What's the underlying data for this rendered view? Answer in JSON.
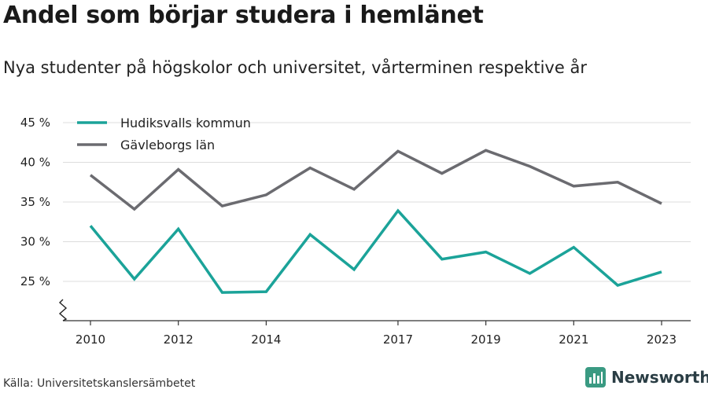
{
  "header": {
    "title": "Andel som börjar studera i hemlänet",
    "subtitle": "Nya studenter på högskolor och universitet, vårterminen respektive år"
  },
  "footer": {
    "source": "Källa: Universitetskanslersämbetet",
    "brand": "Newsworthy"
  },
  "colors": {
    "brand": "#3a9a82"
  },
  "chart_data": {
    "type": "line",
    "x": [
      2010,
      2011,
      2012,
      2013,
      2014,
      2015,
      2016,
      2017,
      2018,
      2019,
      2020,
      2021,
      2022,
      2023
    ],
    "x_ticks": [
      "2010",
      "2012",
      "2014",
      "2017",
      "2019",
      "2021",
      "2023"
    ],
    "y_ticks": [
      "25 %",
      "30 %",
      "35 %",
      "40 %",
      "45 %"
    ],
    "ylim": [
      20,
      45
    ],
    "y_axis_break": true,
    "grid": true,
    "legend_position": "top-left",
    "series": [
      {
        "name": "Hudiksvalls kommun",
        "color": "#1ba399",
        "values": [
          32.0,
          25.3,
          31.6,
          23.6,
          23.7,
          30.9,
          26.5,
          33.9,
          27.8,
          28.7,
          26.0,
          29.3,
          24.5,
          26.2
        ]
      },
      {
        "name": "Gävleborgs län",
        "color": "#6b6b70",
        "values": [
          38.4,
          34.1,
          39.1,
          34.5,
          35.9,
          39.3,
          36.6,
          41.4,
          38.6,
          41.5,
          39.5,
          37.0,
          37.5,
          34.8
        ]
      }
    ]
  }
}
